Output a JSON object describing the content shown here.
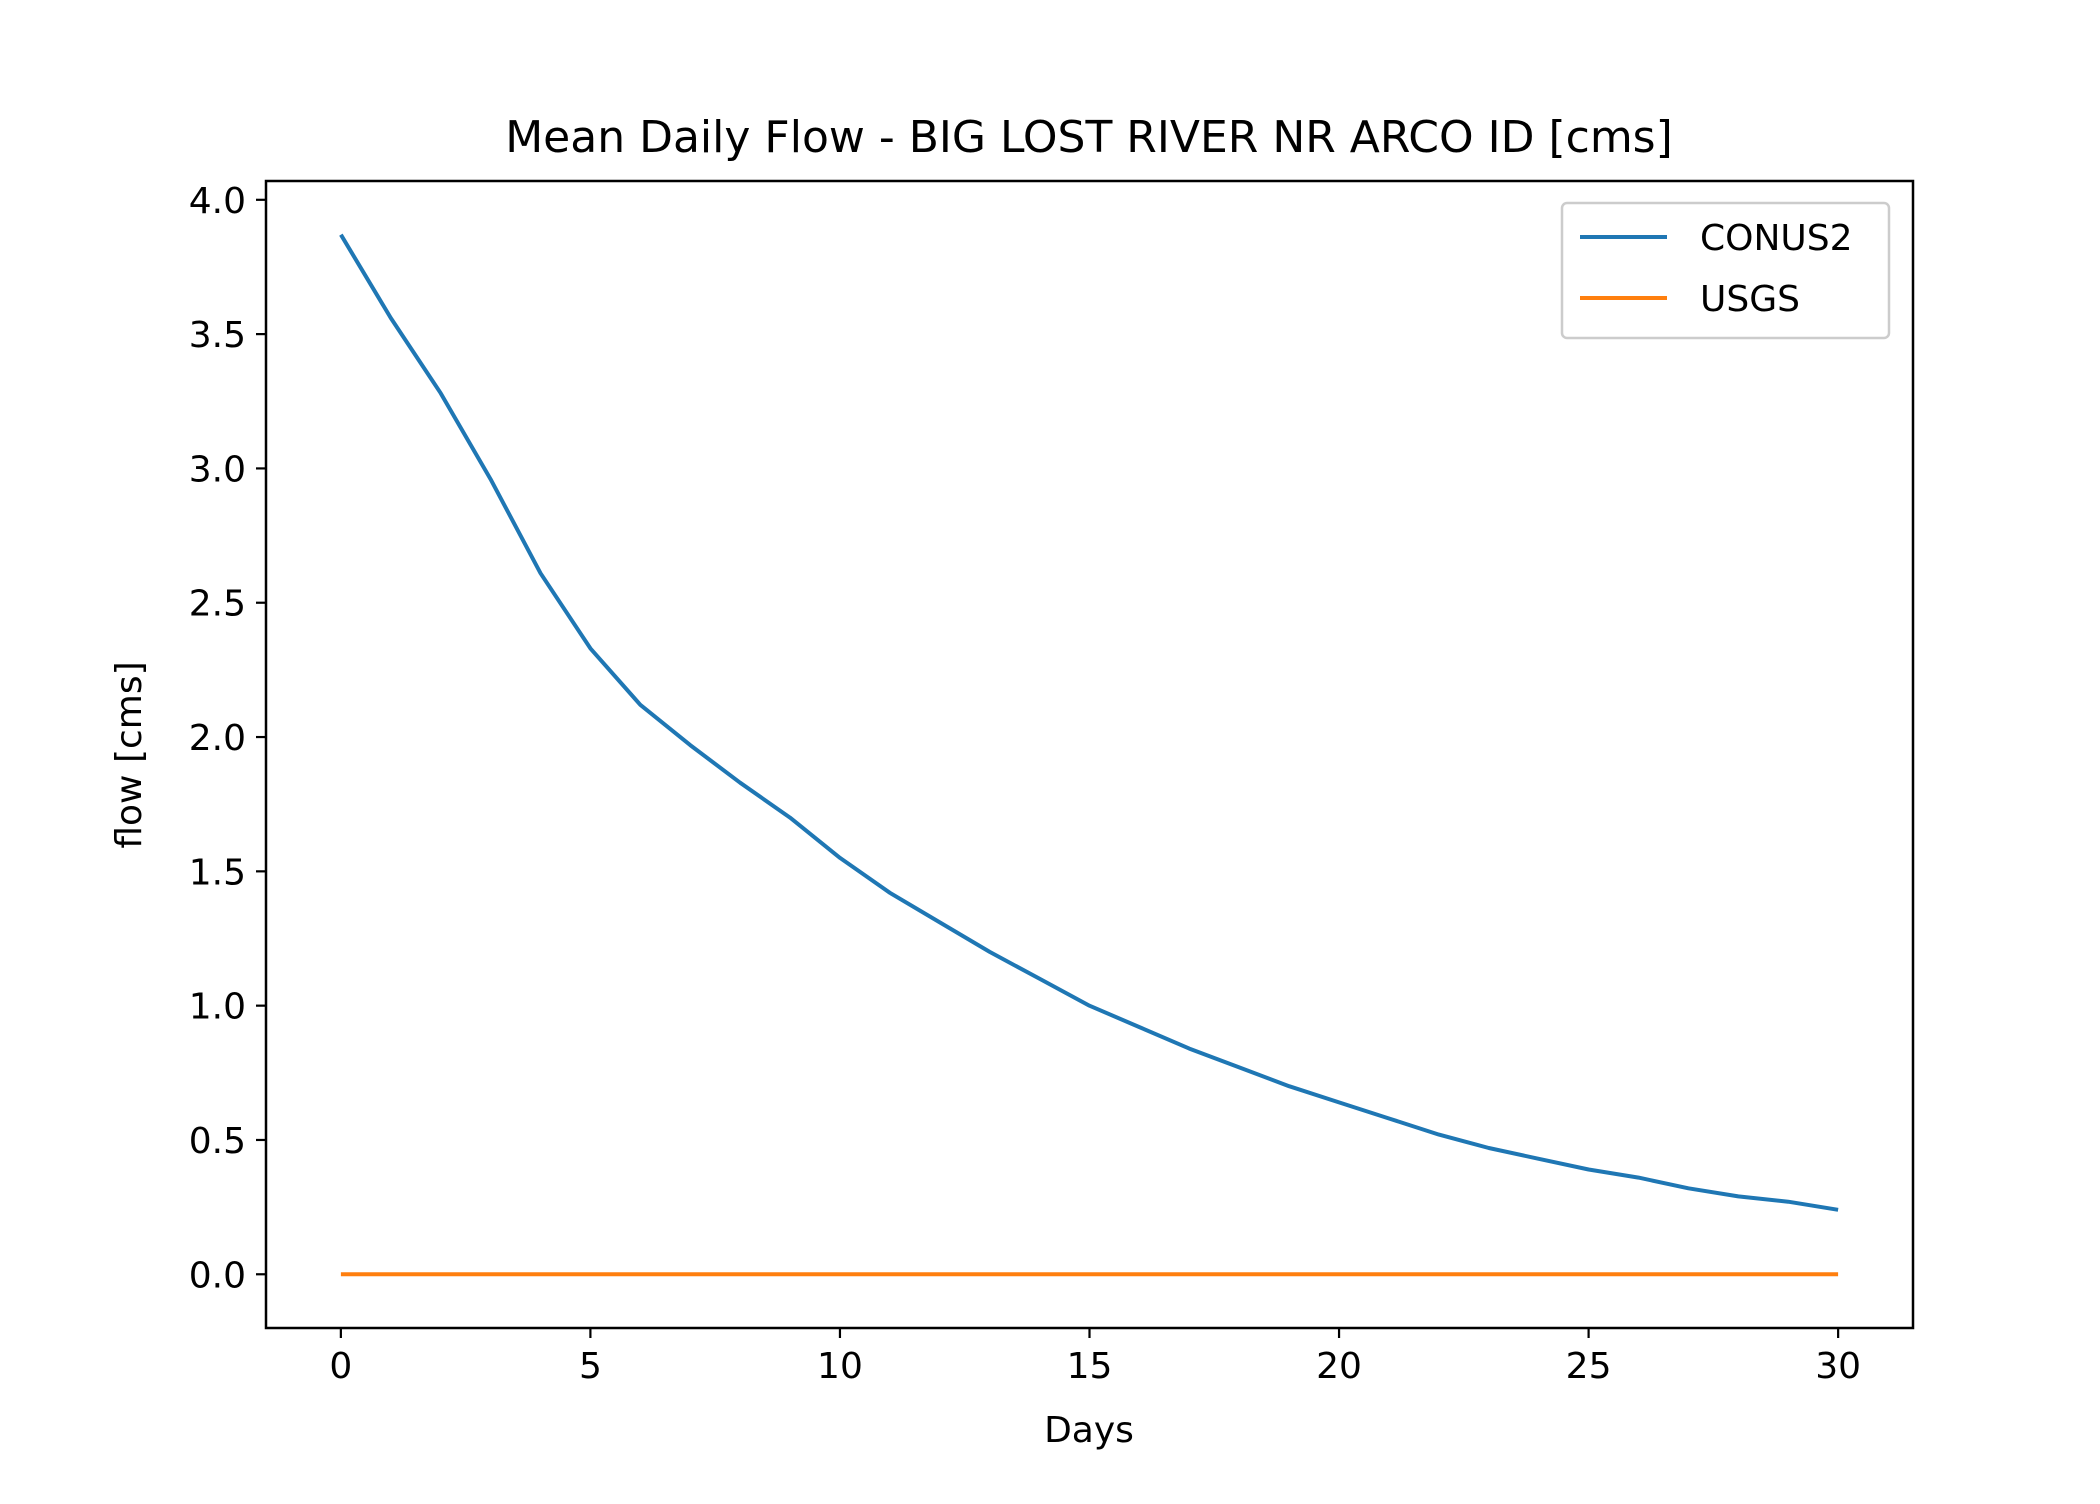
{
  "chart_data": {
    "type": "line",
    "title": "Mean Daily Flow - BIG LOST RIVER NR ARCO ID [cms]",
    "xlabel": "Days",
    "ylabel": "flow [cms]",
    "xlim": [
      -1.5,
      31.5
    ],
    "ylim": [
      -0.2,
      4.07
    ],
    "xticks": [
      0,
      5,
      10,
      15,
      20,
      25,
      30
    ],
    "xtick_labels": [
      "0",
      "5",
      "10",
      "15",
      "20",
      "25",
      "30"
    ],
    "yticks": [
      0.0,
      0.5,
      1.0,
      1.5,
      2.0,
      2.5,
      3.0,
      3.5,
      4.0
    ],
    "ytick_labels": [
      "0.0",
      "0.5",
      "1.0",
      "1.5",
      "2.0",
      "2.5",
      "3.0",
      "3.5",
      "4.0"
    ],
    "grid": false,
    "legend_position": "top-right",
    "x": [
      0,
      1,
      2,
      3,
      4,
      5,
      6,
      7,
      8,
      9,
      10,
      11,
      12,
      13,
      14,
      15,
      16,
      17,
      18,
      19,
      20,
      21,
      22,
      23,
      24,
      25,
      26,
      27,
      28,
      29,
      30
    ],
    "series": [
      {
        "name": "CONUS2",
        "color": "#1f77b4",
        "values": [
          3.87,
          3.56,
          3.28,
          2.96,
          2.61,
          2.33,
          2.12,
          1.97,
          1.83,
          1.7,
          1.55,
          1.42,
          1.31,
          1.2,
          1.1,
          1.0,
          0.92,
          0.84,
          0.77,
          0.7,
          0.64,
          0.58,
          0.52,
          0.47,
          0.43,
          0.39,
          0.36,
          0.32,
          0.29,
          0.27,
          0.24
        ]
      },
      {
        "name": "USGS",
        "color": "#ff7f0e",
        "values": [
          0,
          0,
          0,
          0,
          0,
          0,
          0,
          0,
          0,
          0,
          0,
          0,
          0,
          0,
          0,
          0,
          0,
          0,
          0,
          0,
          0,
          0,
          0,
          0,
          0,
          0,
          0,
          0,
          0,
          0,
          0
        ]
      }
    ]
  }
}
